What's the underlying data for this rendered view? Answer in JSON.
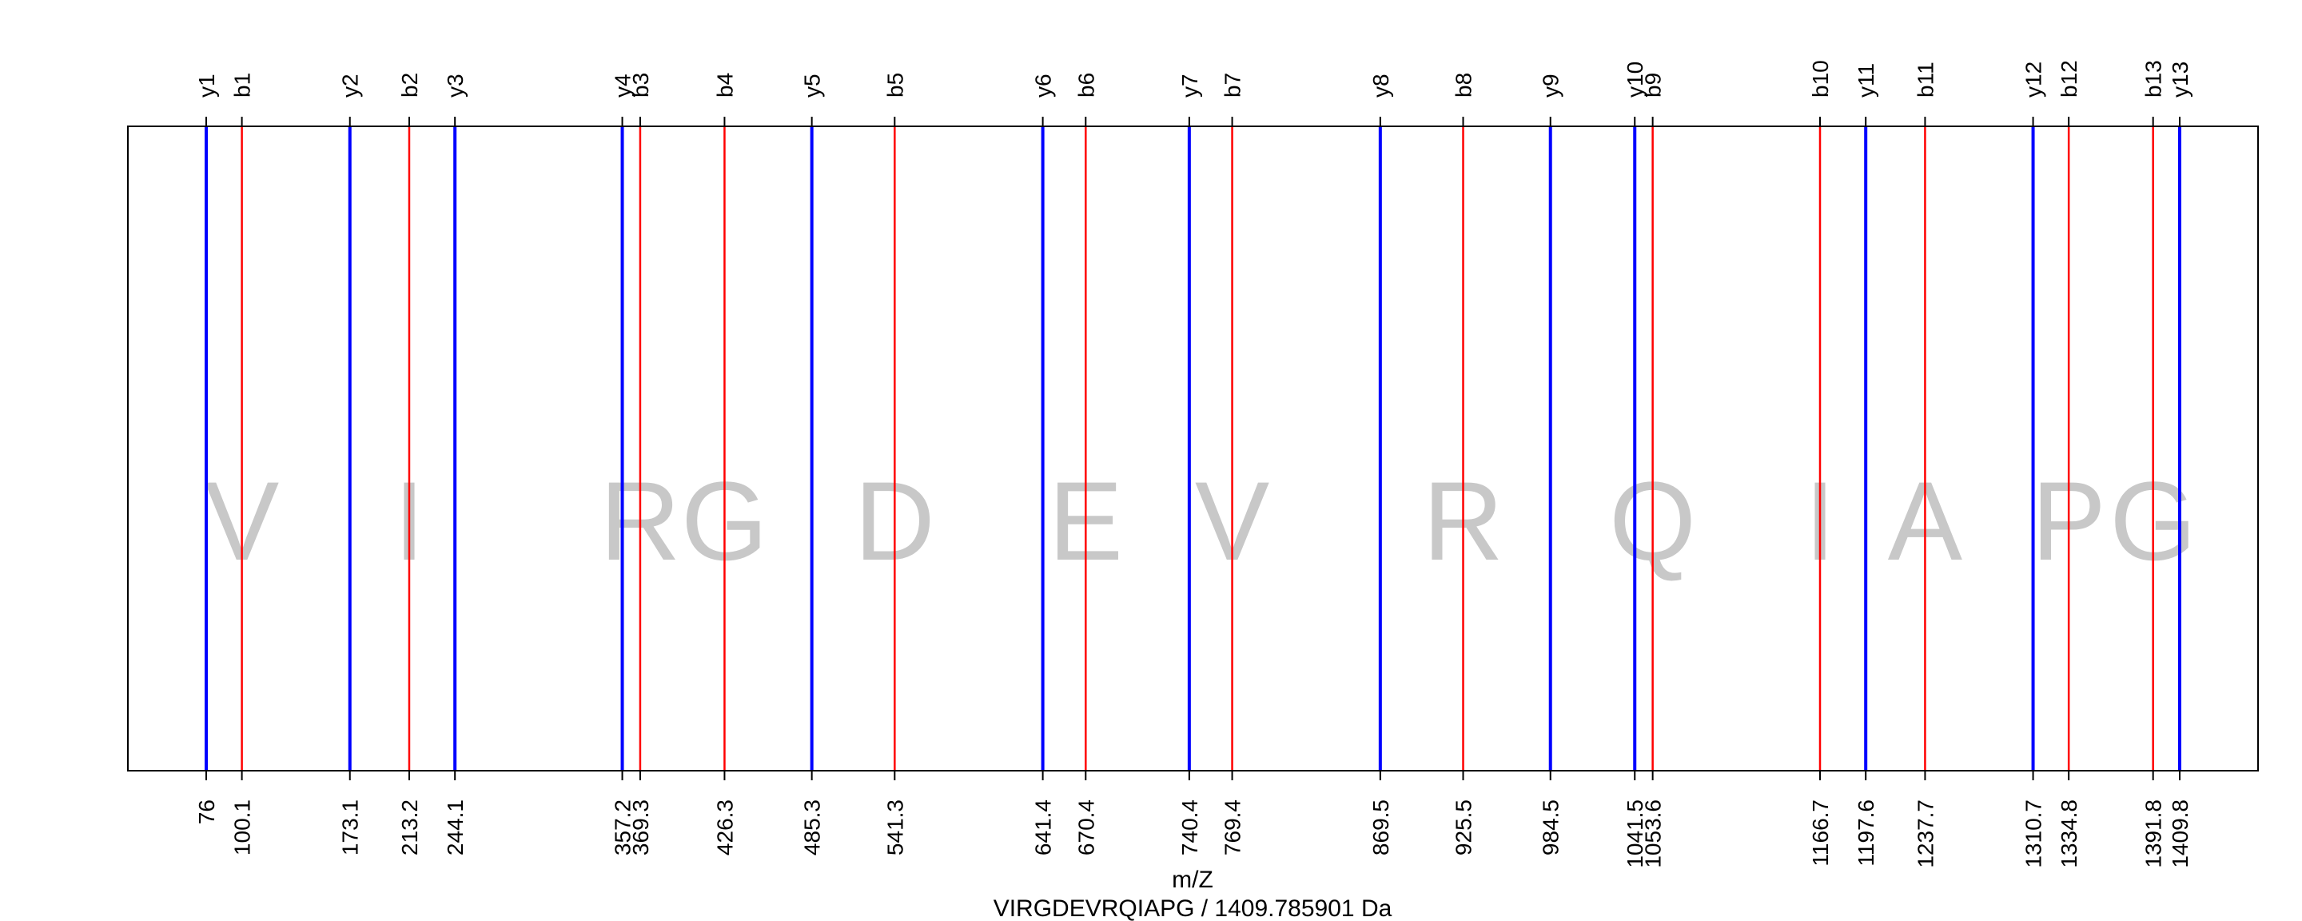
{
  "chart_data": {
    "type": "spectrum",
    "xlabel": "m/Z",
    "footer": "VIRGDEVRQIAPG / 1409.785901 Da",
    "xlim": [
      76,
      1409.8
    ],
    "colors": {
      "b": "#ff0000",
      "y": "#0000ff",
      "frame": "#000000",
      "residue": "#c8c8c8"
    },
    "series": [
      {
        "name": "b",
        "ions": [
          {
            "label": "b1",
            "mz": 100.1,
            "mz_label": "100.1"
          },
          {
            "label": "b2",
            "mz": 213.2,
            "mz_label": "213.2"
          },
          {
            "label": "b3",
            "mz": 369.3,
            "mz_label": "369.3"
          },
          {
            "label": "b4",
            "mz": 426.3,
            "mz_label": "426.3"
          },
          {
            "label": "b5",
            "mz": 541.3,
            "mz_label": "541.3"
          },
          {
            "label": "b6",
            "mz": 670.4,
            "mz_label": "670.4"
          },
          {
            "label": "b7",
            "mz": 769.4,
            "mz_label": "769.4"
          },
          {
            "label": "b8",
            "mz": 925.5,
            "mz_label": "925.5"
          },
          {
            "label": "b9",
            "mz": 1053.6,
            "mz_label": "1053.6"
          },
          {
            "label": "b10",
            "mz": 1166.7,
            "mz_label": "1166.7"
          },
          {
            "label": "b11",
            "mz": 1237.7,
            "mz_label": "1237.7"
          },
          {
            "label": "b12",
            "mz": 1334.8,
            "mz_label": "1334.8"
          },
          {
            "label": "b13",
            "mz": 1391.8,
            "mz_label": "1391.8"
          }
        ]
      },
      {
        "name": "y",
        "ions": [
          {
            "label": "y1",
            "mz": 76,
            "mz_label": "76"
          },
          {
            "label": "y2",
            "mz": 173.1,
            "mz_label": "173.1"
          },
          {
            "label": "y3",
            "mz": 244.1,
            "mz_label": "244.1"
          },
          {
            "label": "y4",
            "mz": 357.2,
            "mz_label": "357.2"
          },
          {
            "label": "y5",
            "mz": 485.3,
            "mz_label": "485.3"
          },
          {
            "label": "y6",
            "mz": 641.4,
            "mz_label": "641.4"
          },
          {
            "label": "y7",
            "mz": 740.4,
            "mz_label": "740.4"
          },
          {
            "label": "y8",
            "mz": 869.5,
            "mz_label": "869.5"
          },
          {
            "label": "y9",
            "mz": 984.5,
            "mz_label": "984.5"
          },
          {
            "label": "y10",
            "mz": 1041.5,
            "mz_label": "1041.5"
          },
          {
            "label": "y11",
            "mz": 1197.6,
            "mz_label": "1197.6"
          },
          {
            "label": "y12",
            "mz": 1310.7,
            "mz_label": "1310.7"
          },
          {
            "label": "y13",
            "mz": 1409.8,
            "mz_label": "1409.8"
          }
        ]
      }
    ],
    "residues": [
      {
        "letter": "V",
        "mz": 100.1
      },
      {
        "letter": "I",
        "mz": 213.2
      },
      {
        "letter": "R",
        "mz": 369.3
      },
      {
        "letter": "G",
        "mz": 426.3
      },
      {
        "letter": "D",
        "mz": 541.3
      },
      {
        "letter": "E",
        "mz": 670.4
      },
      {
        "letter": "V",
        "mz": 769.4
      },
      {
        "letter": "R",
        "mz": 925.5
      },
      {
        "letter": "Q",
        "mz": 1053.6
      },
      {
        "letter": "I",
        "mz": 1166.7
      },
      {
        "letter": "A",
        "mz": 1237.7
      },
      {
        "letter": "P",
        "mz": 1334.8
      },
      {
        "letter": "G",
        "mz": 1391.8
      }
    ]
  }
}
